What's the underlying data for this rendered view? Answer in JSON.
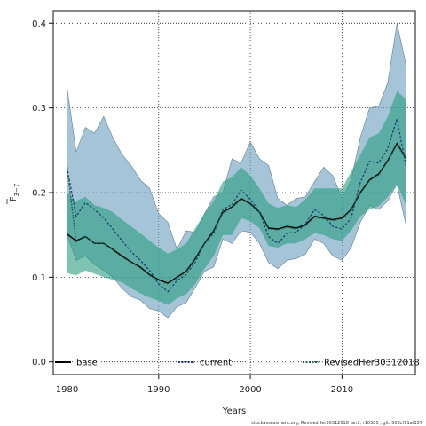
{
  "chart_data": {
    "type": "area",
    "title": "",
    "xlabel": "Years",
    "ylabel_main": "F",
    "ylabel_sub": "3−7",
    "xlim": [
      1978.5,
      2018
    ],
    "ylim": [
      -0.015,
      0.415
    ],
    "x_ticks": [
      1980,
      1990,
      2000,
      2010
    ],
    "y_ticks": [
      0.0,
      0.1,
      0.2,
      0.3,
      0.4
    ],
    "y_tick_labels": [
      "0.0",
      "0.1",
      "0.2",
      "0.3",
      "0.4"
    ],
    "grid": true,
    "legend_position": "bottom",
    "x": [
      1980,
      1981,
      1982,
      1983,
      1984,
      1985,
      1986,
      1987,
      1988,
      1989,
      1990,
      1991,
      1992,
      1993,
      1994,
      1995,
      1996,
      1997,
      1998,
      1999,
      2000,
      2001,
      2002,
      2003,
      2004,
      2005,
      2006,
      2007,
      2008,
      2009,
      2010,
      2011,
      2012,
      2013,
      2014,
      2015,
      2016,
      2017
    ],
    "series": [
      {
        "name": "base",
        "color": "#000000",
        "dash": "solid",
        "values": [
          0.151,
          0.143,
          0.148,
          0.14,
          0.14,
          0.133,
          0.125,
          0.118,
          0.112,
          0.103,
          0.097,
          0.093,
          0.1,
          0.107,
          0.122,
          0.14,
          0.155,
          0.177,
          0.183,
          0.193,
          0.187,
          0.177,
          0.158,
          0.157,
          0.16,
          0.158,
          0.162,
          0.172,
          0.17,
          0.168,
          0.17,
          0.18,
          0.2,
          0.215,
          0.222,
          0.238,
          0.258,
          0.24
        ],
        "lower": [
          0.105,
          0.102,
          0.108,
          0.104,
          0.1,
          0.097,
          0.094,
          0.087,
          0.081,
          0.076,
          0.072,
          0.067,
          0.075,
          0.08,
          0.092,
          0.11,
          0.125,
          0.15,
          0.15,
          0.17,
          0.166,
          0.158,
          0.137,
          0.135,
          0.14,
          0.14,
          0.145,
          0.152,
          0.15,
          0.145,
          0.143,
          0.155,
          0.172,
          0.18,
          0.184,
          0.195,
          0.21,
          0.185
        ],
        "upper": [
          0.2,
          0.19,
          0.195,
          0.185,
          0.182,
          0.177,
          0.168,
          0.16,
          0.152,
          0.143,
          0.135,
          0.128,
          0.133,
          0.14,
          0.158,
          0.175,
          0.19,
          0.213,
          0.218,
          0.23,
          0.22,
          0.205,
          0.187,
          0.182,
          0.185,
          0.183,
          0.192,
          0.205,
          0.205,
          0.205,
          0.205,
          0.225,
          0.245,
          0.265,
          0.27,
          0.29,
          0.32,
          0.31
        ],
        "band_color": "#52b59a"
      },
      {
        "name": "current",
        "color": "#1f3d7a",
        "dash": "dotted",
        "values": [
          0.23,
          0.172,
          0.188,
          0.18,
          0.17,
          0.157,
          0.143,
          0.13,
          0.12,
          0.108,
          0.092,
          0.083,
          0.096,
          0.103,
          0.118,
          0.14,
          0.152,
          0.18,
          0.186,
          0.203,
          0.192,
          0.177,
          0.148,
          0.14,
          0.152,
          0.153,
          0.163,
          0.18,
          0.173,
          0.16,
          0.157,
          0.17,
          0.212,
          0.237,
          0.235,
          0.252,
          0.287,
          0.23
        ],
        "lower": [
          0.15,
          0.12,
          0.125,
          0.115,
          0.108,
          0.1,
          0.087,
          0.077,
          0.073,
          0.063,
          0.06,
          0.052,
          0.065,
          0.07,
          0.088,
          0.107,
          0.112,
          0.145,
          0.14,
          0.155,
          0.153,
          0.14,
          0.117,
          0.11,
          0.12,
          0.122,
          0.127,
          0.145,
          0.14,
          0.125,
          0.12,
          0.135,
          0.165,
          0.185,
          0.18,
          0.19,
          0.21,
          0.16
        ],
        "upper": [
          0.325,
          0.248,
          0.277,
          0.27,
          0.29,
          0.265,
          0.245,
          0.232,
          0.215,
          0.205,
          0.175,
          0.165,
          0.133,
          0.155,
          0.153,
          0.175,
          0.195,
          0.2,
          0.24,
          0.235,
          0.26,
          0.24,
          0.232,
          0.193,
          0.185,
          0.193,
          0.195,
          0.213,
          0.23,
          0.22,
          0.193,
          0.215,
          0.265,
          0.3,
          0.302,
          0.33,
          0.4,
          0.35
        ],
        "band_color": "#6f9fbf"
      },
      {
        "name": "RevisedHer30312018",
        "color": "#1b5e4a",
        "dash": "dotted",
        "values": [
          0.23,
          0.142,
          0.148,
          0.14,
          0.14,
          0.132,
          0.124,
          0.117,
          0.111,
          0.102,
          0.096,
          0.092,
          0.099,
          0.106,
          0.121,
          0.139,
          0.154,
          0.176,
          0.182,
          0.192,
          0.186,
          0.176,
          0.157,
          0.156,
          0.159,
          0.157,
          0.161,
          0.171,
          0.169,
          0.167,
          0.169,
          0.179,
          0.199,
          0.214,
          0.221,
          0.237,
          0.257,
          0.24
        ],
        "lower": [
          0.105,
          0.102,
          0.108,
          0.104,
          0.1,
          0.097,
          0.094,
          0.087,
          0.081,
          0.076,
          0.072,
          0.067,
          0.075,
          0.08,
          0.092,
          0.11,
          0.125,
          0.15,
          0.15,
          0.17,
          0.166,
          0.158,
          0.137,
          0.135,
          0.14,
          0.14,
          0.145,
          0.152,
          0.15,
          0.145,
          0.143,
          0.155,
          0.172,
          0.18,
          0.184,
          0.195,
          0.21,
          0.185
        ],
        "upper": [
          0.2,
          0.19,
          0.195,
          0.185,
          0.182,
          0.177,
          0.168,
          0.16,
          0.152,
          0.143,
          0.135,
          0.128,
          0.133,
          0.14,
          0.158,
          0.175,
          0.19,
          0.213,
          0.218,
          0.23,
          0.22,
          0.205,
          0.187,
          0.182,
          0.185,
          0.183,
          0.192,
          0.205,
          0.205,
          0.205,
          0.205,
          0.225,
          0.245,
          0.265,
          0.27,
          0.29,
          0.32,
          0.31
        ],
        "band_color": "#2a9d7f"
      }
    ],
    "legend": [
      {
        "label": "base",
        "style": "solid",
        "color": "#000000"
      },
      {
        "label": "current",
        "style": "dotted",
        "color": "#1f3d7a"
      },
      {
        "label": "RevisedHer30312018",
        "style": "dotted",
        "color": "#1b5e4a"
      }
    ],
    "footer": "stockassessment.org, RevisedHer30312018 .an1, r10385 , git: 503cf91af157"
  }
}
